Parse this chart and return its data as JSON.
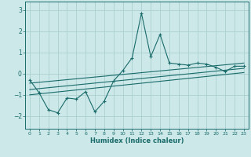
{
  "xlabel": "Humidex (Indice chaleur)",
  "ylabel": "",
  "bg_color": "#cce8e8",
  "grid_color": "#aacfcf",
  "line_color": "#1a6b6b",
  "xlim": [
    -0.5,
    23.5
  ],
  "ylim": [
    -2.6,
    3.4
  ],
  "xticks": [
    0,
    1,
    2,
    3,
    4,
    5,
    6,
    7,
    8,
    9,
    10,
    11,
    12,
    13,
    14,
    15,
    16,
    17,
    18,
    19,
    20,
    21,
    22,
    23
  ],
  "yticks": [
    -2,
    -1,
    0,
    1,
    2,
    3
  ],
  "main_x": [
    0,
    1,
    2,
    3,
    4,
    5,
    6,
    7,
    8,
    9,
    10,
    11,
    12,
    13,
    14,
    15,
    16,
    17,
    18,
    19,
    20,
    21,
    22,
    23
  ],
  "main_y": [
    -0.3,
    -0.9,
    -1.7,
    -1.85,
    -1.15,
    -1.2,
    -0.85,
    -1.8,
    -1.3,
    -0.35,
    0.15,
    0.75,
    2.85,
    0.8,
    1.85,
    0.5,
    0.45,
    0.4,
    0.5,
    0.45,
    0.3,
    0.1,
    0.35,
    0.35
  ],
  "trend1_x": [
    0,
    23
  ],
  "trend1_y": [
    -0.45,
    0.5
  ],
  "trend2_x": [
    0,
    23
  ],
  "trend2_y": [
    -0.75,
    0.25
  ],
  "trend3_x": [
    0,
    23
  ],
  "trend3_y": [
    -1.0,
    0.05
  ]
}
